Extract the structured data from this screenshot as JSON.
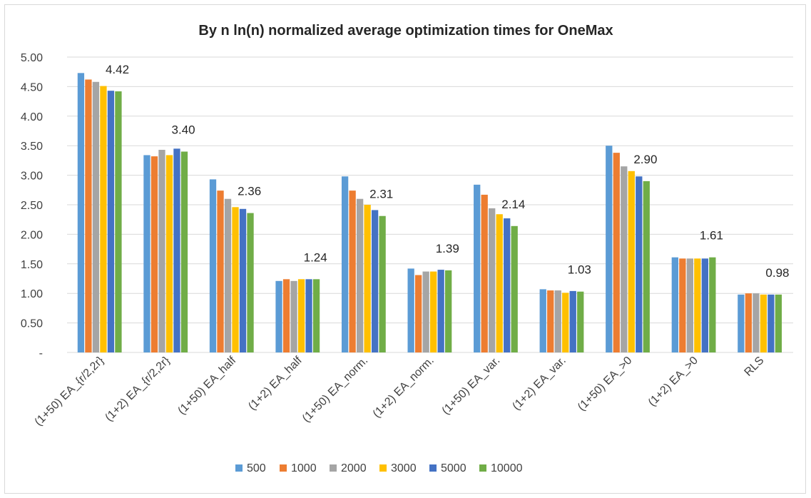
{
  "chart_data": {
    "type": "bar",
    "title": "By n ln(n) normalized average optimization times for OneMax",
    "xlabel": "",
    "ylabel": "",
    "ylim": [
      0,
      5
    ],
    "yticks": [
      "-",
      "0.50",
      "1.00",
      "1.50",
      "2.00",
      "2.50",
      "3.00",
      "3.50",
      "4.00",
      "4.50",
      "5.00"
    ],
    "grid": true,
    "legend_position": "bottom",
    "categories": [
      "(1+50) EA_{r/2,2r}",
      "(1+2) EA_{r/2,2r}",
      "(1+50) EA_half",
      "(1+2) EA_half",
      "(1+50) EA_norm.",
      "(1+2) EA_norm.",
      "(1+50) EA_var.",
      "(1+2) EA_var.",
      "(1+50) EA_>0",
      "(1+2) EA_>0",
      "RLS"
    ],
    "series": [
      {
        "name": "500",
        "color": "#5b9bd5",
        "values": [
          4.73,
          3.34,
          2.93,
          1.21,
          2.98,
          1.42,
          2.84,
          1.07,
          3.5,
          1.61,
          0.98
        ]
      },
      {
        "name": "1000",
        "color": "#ed7d31",
        "values": [
          4.62,
          3.32,
          2.74,
          1.24,
          2.74,
          1.31,
          2.67,
          1.05,
          3.38,
          1.59,
          1.0
        ]
      },
      {
        "name": "2000",
        "color": "#a5a5a5",
        "values": [
          4.58,
          3.43,
          2.6,
          1.21,
          2.6,
          1.37,
          2.44,
          1.05,
          3.15,
          1.59,
          1.0
        ]
      },
      {
        "name": "3000",
        "color": "#ffc000",
        "values": [
          4.51,
          3.34,
          2.46,
          1.24,
          2.5,
          1.37,
          2.34,
          1.01,
          3.07,
          1.59,
          0.98
        ]
      },
      {
        "name": "5000",
        "color": "#4472c4",
        "values": [
          4.43,
          3.45,
          2.43,
          1.24,
          2.41,
          1.4,
          2.27,
          1.04,
          2.98,
          1.59,
          0.98
        ]
      },
      {
        "name": "10000",
        "color": "#70ad47",
        "values": [
          4.42,
          3.4,
          2.36,
          1.24,
          2.31,
          1.39,
          2.14,
          1.03,
          2.9,
          1.61,
          0.98
        ]
      }
    ],
    "data_labels": [
      "4.42",
      "3.40",
      "2.36",
      "1.24",
      "2.31",
      "1.39",
      "2.14",
      "1.03",
      "2.90",
      "1.61",
      "0.98"
    ],
    "gridline_color": "#d9d9d9"
  }
}
